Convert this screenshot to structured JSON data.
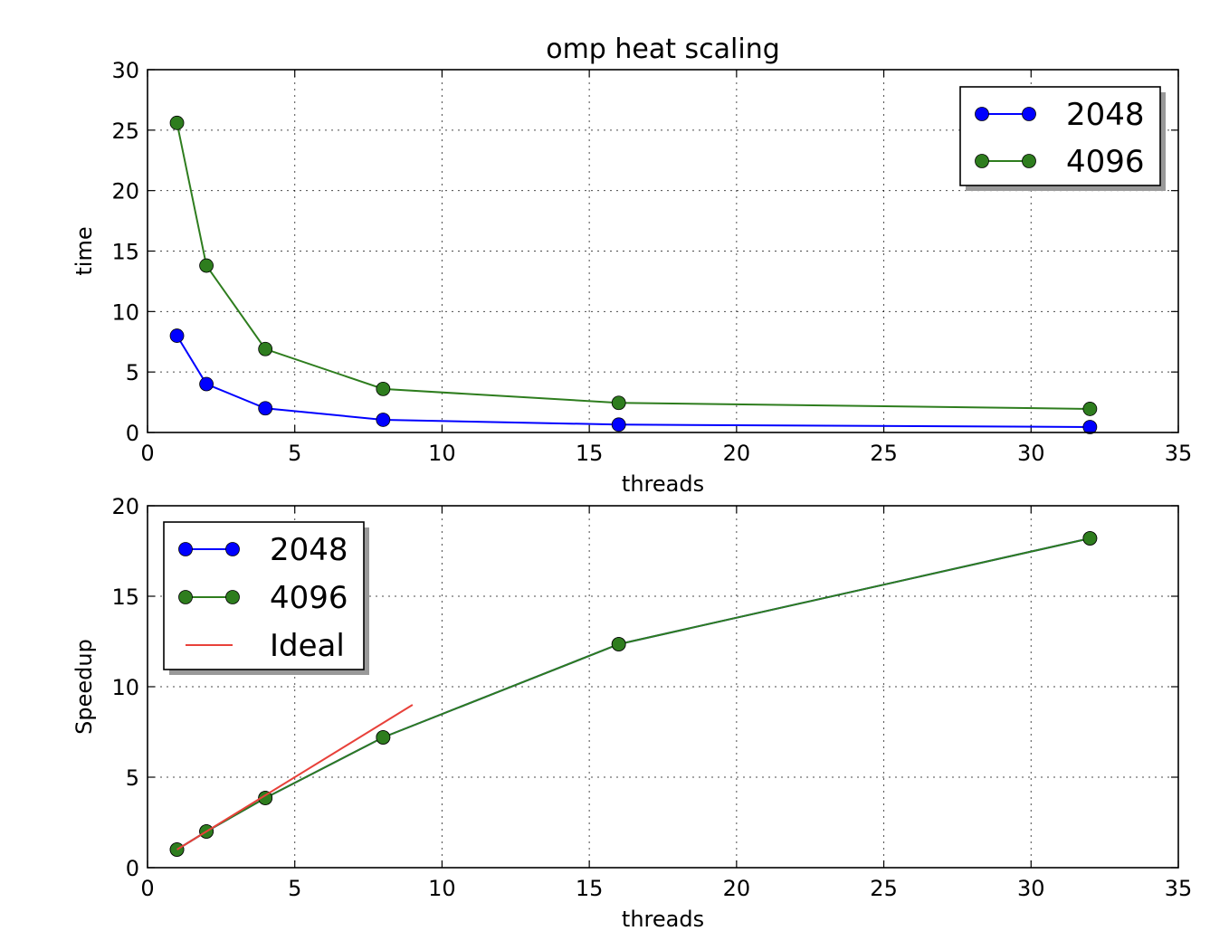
{
  "chart_data": [
    {
      "type": "line",
      "title": "omp heat scaling",
      "xlabel": "threads",
      "ylabel": "time",
      "xlim": [
        0,
        35
      ],
      "ylim": [
        0,
        30
      ],
      "xticks": [
        0,
        5,
        10,
        15,
        20,
        25,
        30,
        35
      ],
      "yticks": [
        0,
        5,
        10,
        15,
        20,
        25,
        30
      ],
      "grid": true,
      "legend_position": "top-right",
      "series": [
        {
          "name": "2048",
          "color": "#0000ff",
          "marker": "circle",
          "x": [
            1,
            2,
            4,
            8,
            16,
            32
          ],
          "y": [
            8.0,
            4.0,
            2.0,
            1.05,
            0.65,
            0.45
          ]
        },
        {
          "name": "4096",
          "color": "#2e7d1e",
          "marker": "circle",
          "x": [
            1,
            2,
            4,
            8,
            16,
            32
          ],
          "y": [
            25.6,
            13.8,
            6.9,
            3.6,
            2.45,
            1.95
          ]
        }
      ]
    },
    {
      "type": "line",
      "title": "",
      "xlabel": "threads",
      "ylabel": "Speedup",
      "xlim": [
        0,
        35
      ],
      "ylim": [
        0,
        20
      ],
      "xticks": [
        0,
        5,
        10,
        15,
        20,
        25,
        30,
        35
      ],
      "yticks": [
        0,
        5,
        10,
        15,
        20
      ],
      "grid": true,
      "legend_position": "top-left",
      "series": [
        {
          "name": "2048",
          "color": "#0000ff",
          "marker": "circle",
          "x": [
            1,
            2,
            4,
            8,
            16,
            32
          ],
          "y": [
            1.0,
            2.0,
            3.85,
            7.2,
            12.35,
            18.2
          ]
        },
        {
          "name": "4096",
          "color": "#2e7d1e",
          "marker": "circle",
          "x": [
            1,
            2,
            4,
            8,
            16,
            32
          ],
          "y": [
            1.0,
            2.0,
            3.85,
            7.2,
            12.35,
            18.2
          ]
        },
        {
          "name": "Ideal",
          "color": "#e8413a",
          "marker": "none",
          "x": [
            1,
            9
          ],
          "y": [
            1,
            9
          ]
        }
      ]
    }
  ]
}
